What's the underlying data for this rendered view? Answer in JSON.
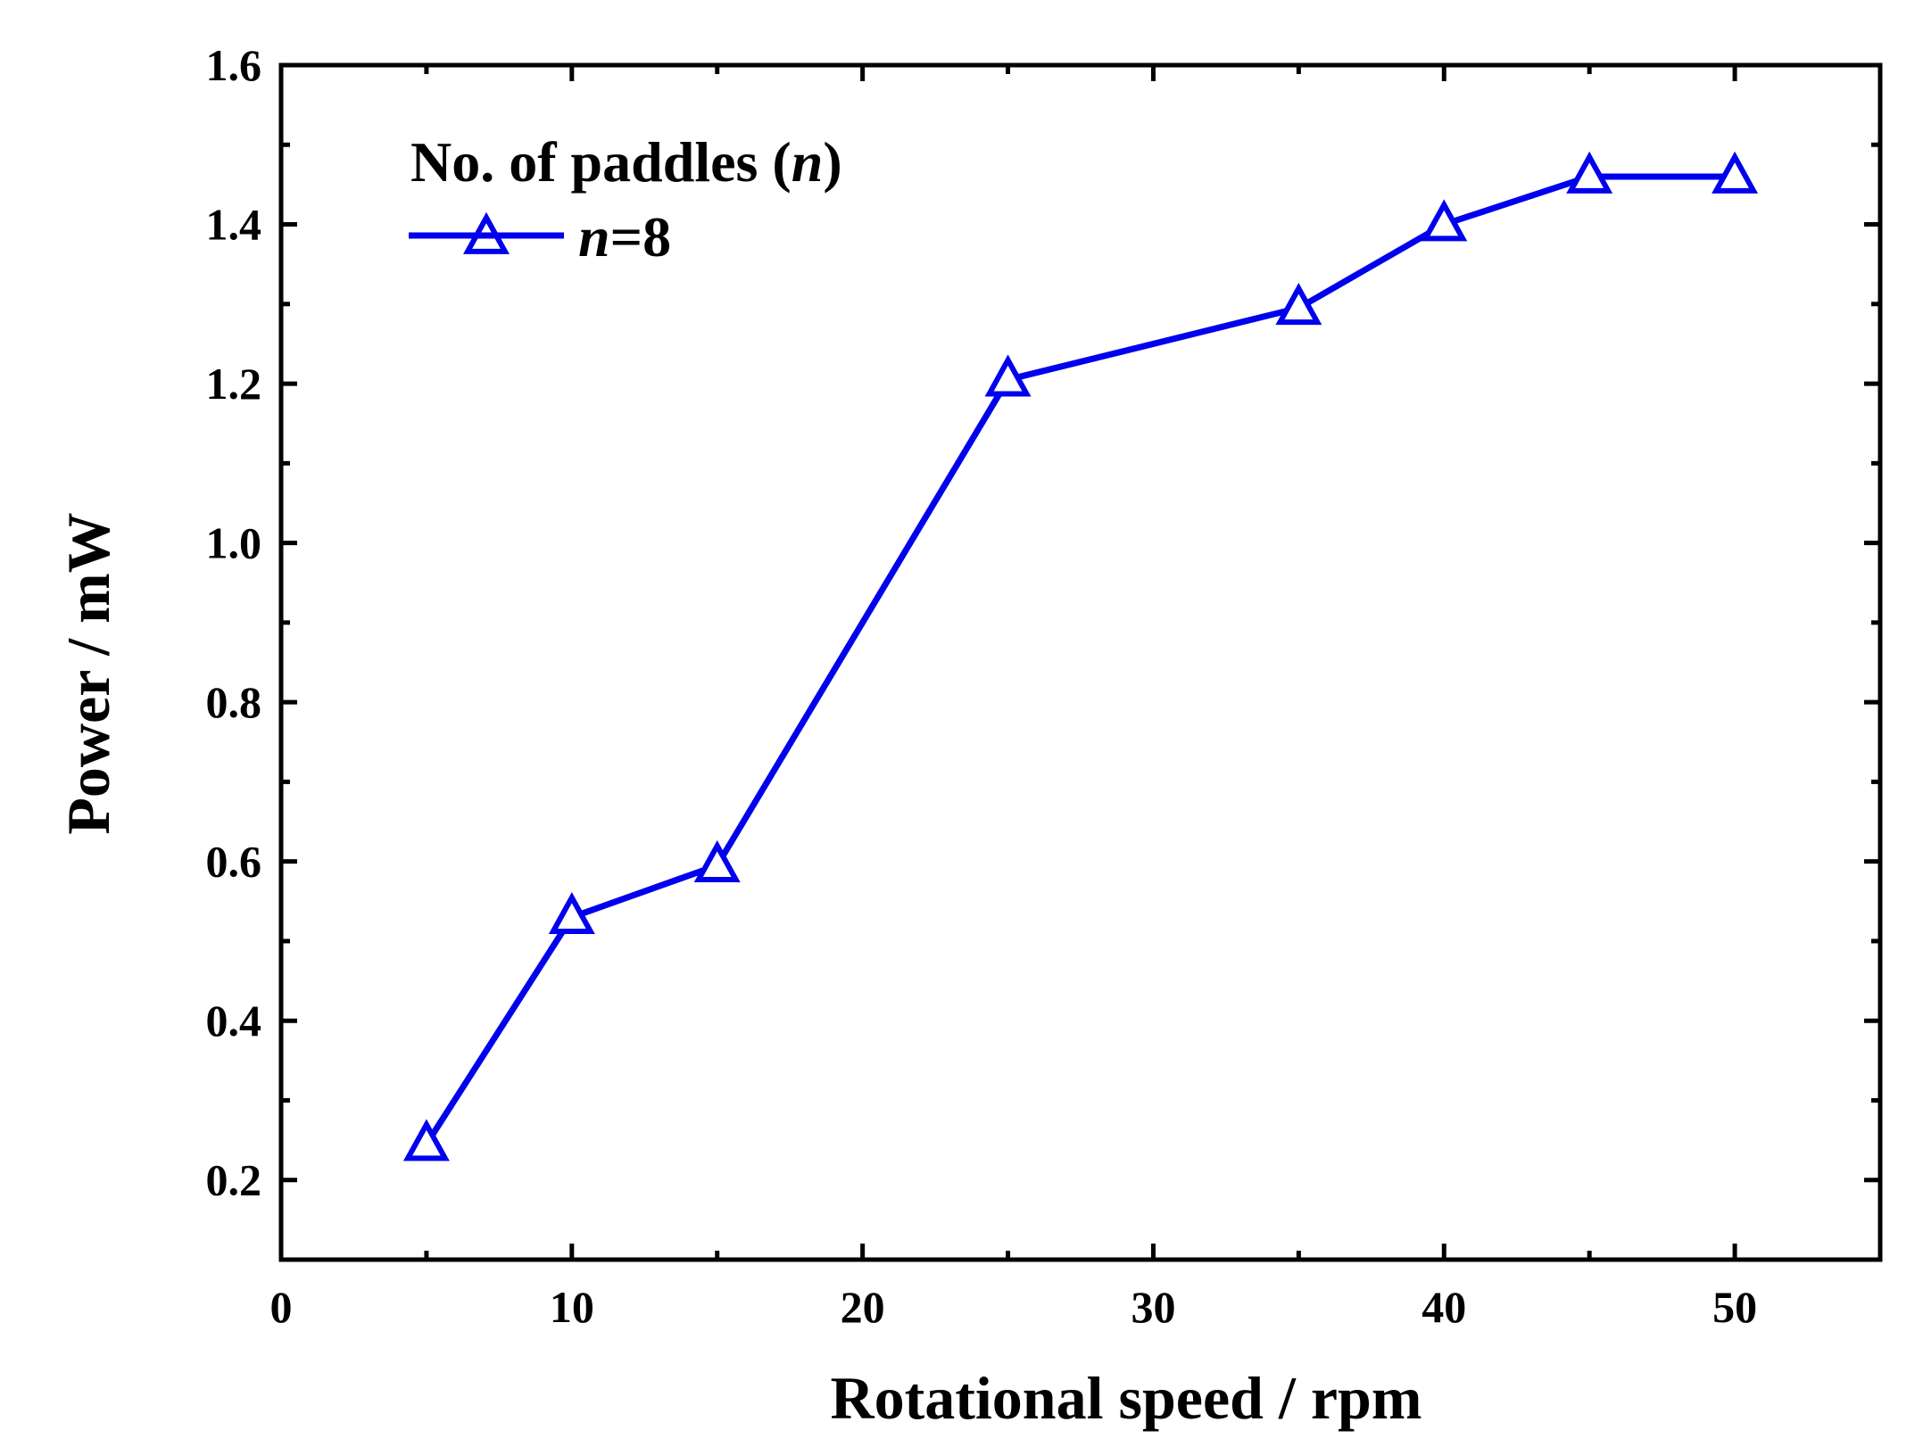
{
  "chart_data": {
    "type": "line",
    "title": "",
    "xlabel": "Rotational speed / rpm",
    "ylabel": "Power / mW",
    "xlim": [
      0,
      55
    ],
    "ylim": [
      0.1,
      1.6
    ],
    "xticks": [
      0,
      10,
      20,
      30,
      40,
      50
    ],
    "xtick_labels": [
      "0",
      "10",
      "20",
      "30",
      "40",
      "50"
    ],
    "yticks": [
      0.2,
      0.4,
      0.6,
      0.8,
      1.0,
      1.2,
      1.4,
      1.6
    ],
    "ytick_labels": [
      "0.2",
      "0.4",
      "0.6",
      "0.8",
      "1.0",
      "1.2",
      "1.4",
      "1.6"
    ],
    "grid": false,
    "legend": {
      "title_main": "No. of paddles (",
      "title_var": "n",
      "title_close": ")",
      "placement": "top-left"
    },
    "series": [
      {
        "name": "n=8",
        "label_var": "n",
        "label_rest": "=8",
        "color": "#0000ee",
        "marker": "open-triangle",
        "x": [
          5,
          10,
          15,
          25,
          35,
          40,
          45,
          50
        ],
        "y": [
          0.245,
          0.53,
          0.595,
          1.205,
          1.295,
          1.4,
          1.46,
          1.46
        ]
      }
    ]
  }
}
